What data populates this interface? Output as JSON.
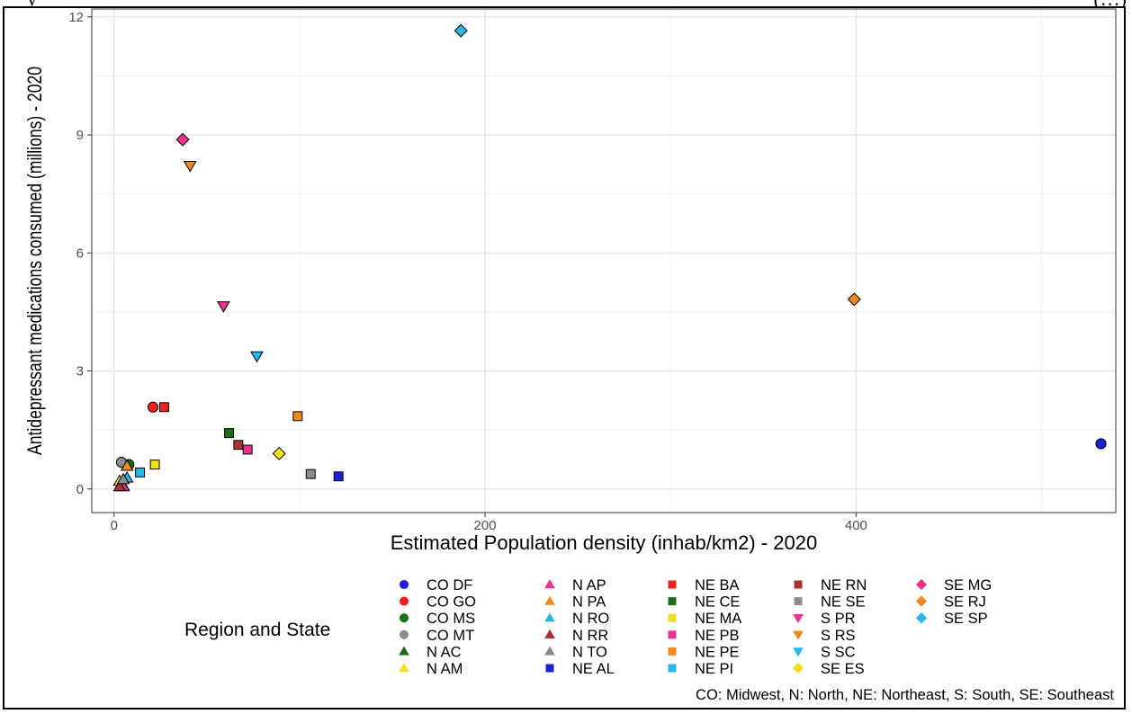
{
  "header_fragments": {
    "left": "y",
    "right": "(…)"
  },
  "chart_data": {
    "type": "scatter",
    "xlabel": "Estimated Population density (inhab/km2) - 2020",
    "ylabel": "Antidepressant medications consumed (millions) - 2020",
    "xlim": [
      -12,
      540
    ],
    "ylim": [
      -0.6,
      12.2
    ],
    "x_ticks": [
      0,
      200,
      400
    ],
    "y_ticks": [
      0,
      3,
      6,
      9,
      12
    ],
    "grid": true,
    "legend_title": "Region and State",
    "legend_placement": "bottom",
    "legend_columns": [
      [
        "CO DF",
        "CO GO",
        "CO MS",
        "CO MT",
        "N AC",
        "N AM"
      ],
      [
        "N AP",
        "N PA",
        "N RO",
        "N RR",
        "N TO",
        "NE AL"
      ],
      [
        "NE BA",
        "NE CE",
        "NE MA",
        "NE PB",
        "NE PE",
        "NE PI"
      ],
      [
        "NE RN",
        "NE SE",
        "S PR",
        "S RS",
        "S SC",
        "SE ES"
      ],
      [
        "SE MG",
        "SE RJ",
        "SE SP"
      ]
    ],
    "caption": "CO: Midwest, N: North, NE: Northeast, S: South, SE: Southeast",
    "series": [
      {
        "name": "CO DF",
        "shape": "circle",
        "color": "#1f1fd6",
        "x": 532,
        "y": 1.15
      },
      {
        "name": "CO GO",
        "shape": "circle",
        "color": "#e8231f",
        "x": 21,
        "y": 2.08
      },
      {
        "name": "CO MS",
        "shape": "circle",
        "color": "#1a6e1a",
        "x": 8,
        "y": 0.62
      },
      {
        "name": "CO MT",
        "shape": "circle",
        "color": "#8c8c8c",
        "x": 4,
        "y": 0.68
      },
      {
        "name": "N AC",
        "shape": "triangle",
        "color": "#1a6e1a",
        "x": 5,
        "y": 0.08
      },
      {
        "name": "N AM",
        "shape": "triangle",
        "color": "#f0e020",
        "x": 3,
        "y": 0.2
      },
      {
        "name": "N AP",
        "shape": "triangle",
        "color": "#e8348c",
        "x": 5,
        "y": 0.06
      },
      {
        "name": "N PA",
        "shape": "triangle",
        "color": "#f08a1e",
        "x": 7,
        "y": 0.58
      },
      {
        "name": "N RO",
        "shape": "triangle",
        "color": "#29b6e8",
        "x": 7,
        "y": 0.28
      },
      {
        "name": "N RR",
        "shape": "triangle",
        "color": "#a83232",
        "x": 3,
        "y": 0.06
      },
      {
        "name": "N TO",
        "shape": "triangle",
        "color": "#8c8c8c",
        "x": 5,
        "y": 0.24
      },
      {
        "name": "NE AL",
        "shape": "square",
        "color": "#1f1fd6",
        "x": 121,
        "y": 0.32
      },
      {
        "name": "NE BA",
        "shape": "square",
        "color": "#e8231f",
        "x": 27,
        "y": 2.08
      },
      {
        "name": "NE CE",
        "shape": "square",
        "color": "#1a6e1a",
        "x": 62,
        "y": 1.42
      },
      {
        "name": "NE MA",
        "shape": "square",
        "color": "#f0e020",
        "x": 22,
        "y": 0.62
      },
      {
        "name": "NE PB",
        "shape": "square",
        "color": "#e8348c",
        "x": 72,
        "y": 1.0
      },
      {
        "name": "NE PE",
        "shape": "square",
        "color": "#f08a1e",
        "x": 99,
        "y": 1.85
      },
      {
        "name": "NE PI",
        "shape": "square",
        "color": "#29b6e8",
        "x": 14,
        "y": 0.42
      },
      {
        "name": "NE RN",
        "shape": "square",
        "color": "#a83232",
        "x": 67,
        "y": 1.12
      },
      {
        "name": "NE SE",
        "shape": "square",
        "color": "#8c8c8c",
        "x": 106,
        "y": 0.38
      },
      {
        "name": "S PR",
        "shape": "triangle-down",
        "color": "#e8348c",
        "x": 59,
        "y": 4.65
      },
      {
        "name": "S RS",
        "shape": "triangle-down",
        "color": "#f08a1e",
        "x": 41,
        "y": 8.22
      },
      {
        "name": "S SC",
        "shape": "triangle-down",
        "color": "#29b6e8",
        "x": 77,
        "y": 3.38
      },
      {
        "name": "SE ES",
        "shape": "diamond",
        "color": "#f0e020",
        "x": 89,
        "y": 0.9
      },
      {
        "name": "SE MG",
        "shape": "diamond",
        "color": "#e8348c",
        "x": 37,
        "y": 8.88
      },
      {
        "name": "SE RJ",
        "shape": "diamond",
        "color": "#f08a1e",
        "x": 399,
        "y": 4.82
      },
      {
        "name": "SE SP",
        "shape": "diamond",
        "color": "#29b6e8",
        "x": 187,
        "y": 11.65
      }
    ]
  }
}
